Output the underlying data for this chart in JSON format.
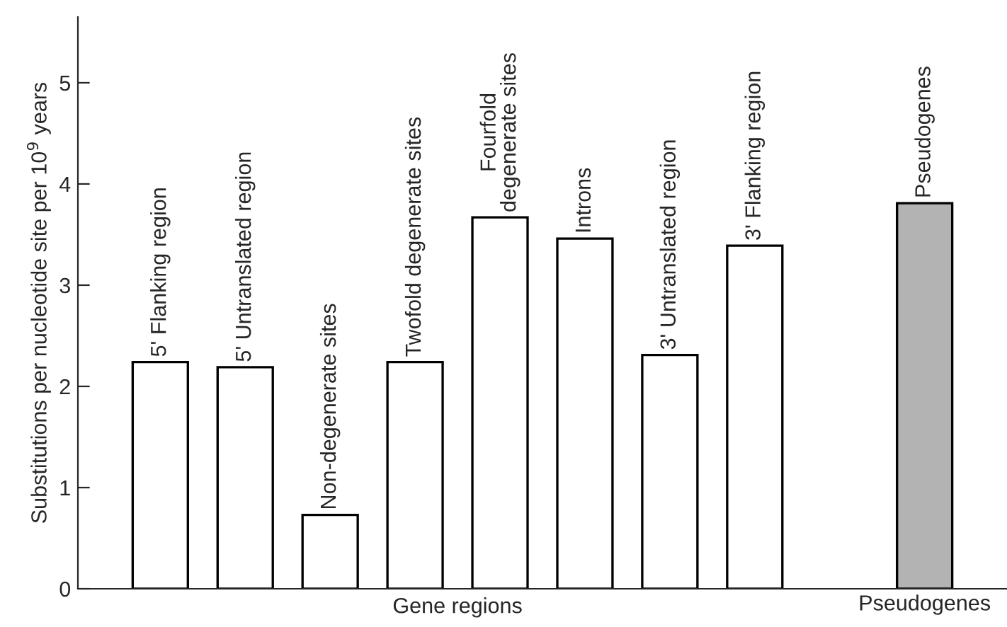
{
  "chart_data": {
    "type": "bar",
    "ylabel": "Substitutions per nucleotide site per 10$^{9}$ years",
    "xlabel": "Gene regions",
    "annotations": [
      "Pseudogenes"
    ],
    "categories": [
      "5' Flanking region",
      "5' Untranslated region",
      "Non-degenerate sites",
      "Twofold degenerate sites",
      "Fourfold\ndegenerate sites",
      "Introns",
      "3' Untranslated region",
      "3' Flanking region",
      null,
      "Pseudogenes"
    ],
    "values": [
      2.24,
      2.19,
      0.73,
      2.24,
      3.67,
      3.46,
      2.31,
      3.39,
      null,
      3.81
    ],
    "colors": [
      "#ffffff",
      "#ffffff",
      "#ffffff",
      "#ffffff",
      "#ffffff",
      "#ffffff",
      "#ffffff",
      "#ffffff",
      "#ffffff",
      "#b3b3b3"
    ],
    "ylim": [
      0,
      5.65
    ],
    "yticks": [
      0,
      1,
      2,
      3,
      4,
      5
    ],
    "grid": false,
    "legend": false
  }
}
